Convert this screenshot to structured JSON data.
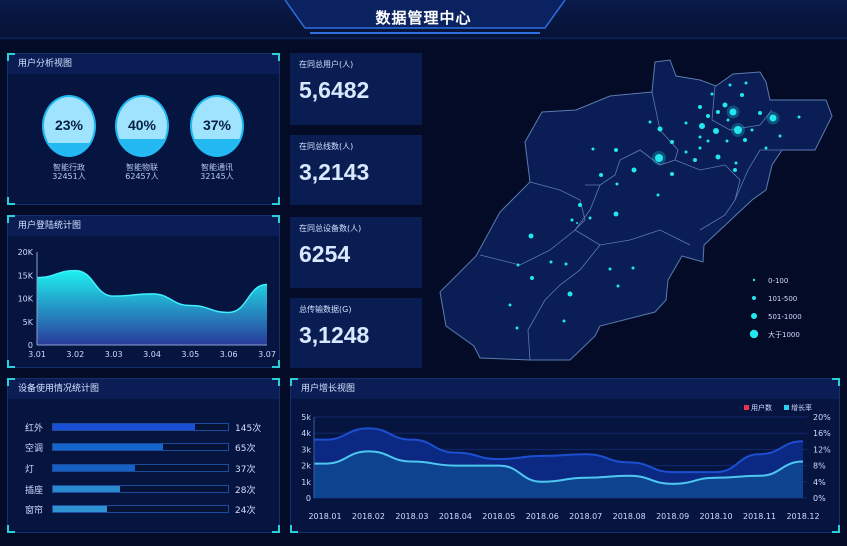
{
  "header": {
    "title": "数据管理中心"
  },
  "user_analysis": {
    "title": "用户分析视图",
    "items": [
      {
        "percent": "23%",
        "fill": 0.23,
        "name": "智能行政",
        "count": "32451人"
      },
      {
        "percent": "40%",
        "fill": 0.4,
        "name": "智能物联",
        "count": "62457人"
      },
      {
        "percent": "37%",
        "fill": 0.37,
        "name": "智能通讯",
        "count": "32145人"
      }
    ]
  },
  "stats": [
    {
      "label": "在同总用户(人)",
      "value": "5,6482"
    },
    {
      "label": "在同总线数(人)",
      "value": "3,2143"
    },
    {
      "label": "在同总设备数(人)",
      "value": "6254"
    },
    {
      "label": "总传输数据(G)",
      "value": "3,1248"
    }
  ],
  "map": {
    "legend": [
      {
        "label": "0-100"
      },
      {
        "label": "101-500"
      },
      {
        "label": "501-1000"
      },
      {
        "label": "大于1000"
      }
    ],
    "color": "#22e6f0"
  },
  "chart_data": [
    {
      "title": "用户登陆统计图",
      "type": "area",
      "categories": [
        "3.01",
        "3.02",
        "3.03",
        "3.04",
        "3.05",
        "3.06",
        "3.07"
      ],
      "values": [
        14500,
        16000,
        10500,
        11000,
        8500,
        7000,
        13000
      ],
      "ylim": [
        0,
        20000
      ],
      "yticks": [
        "0",
        "5K",
        "10K",
        "15K",
        "20K"
      ]
    },
    {
      "title": "设备使用情况统计图",
      "type": "bar",
      "orientation": "horizontal",
      "categories": [
        "红外",
        "空调",
        "灯",
        "插座",
        "窗帘"
      ],
      "values": [
        145,
        65,
        37,
        28,
        24
      ],
      "labels": [
        "145次",
        "65次",
        "37次",
        "28次",
        "24次"
      ],
      "fill_percent": [
        81,
        63,
        47,
        38,
        31
      ],
      "colors": [
        "#1a4fd8",
        "#1466cc",
        "#1560c4",
        "#2a8ad0",
        "#2f92d2"
      ]
    },
    {
      "title": "用户增长视图",
      "type": "area",
      "categories": [
        "2018.01",
        "2018.02",
        "2018.03",
        "2018.04",
        "2018.05",
        "2018.06",
        "2018.07",
        "2018.08",
        "2018.09",
        "2018.10",
        "2018.11",
        "2018.12"
      ],
      "series": [
        {
          "name": "用户数",
          "axis": "left",
          "values": [
            3600,
            4300,
            3600,
            2800,
            2400,
            2600,
            2700,
            2200,
            1600,
            1600,
            2700,
            3500
          ],
          "legend_color": "#e8334a",
          "line_color": "#1c4fd0"
        },
        {
          "name": "增长率",
          "axis": "right",
          "values": [
            8.5,
            11.5,
            9,
            8,
            8,
            4,
            5,
            5.5,
            3.5,
            5,
            5.5,
            9
          ],
          "legend_color": "#2ad0f0",
          "line_color": "#4ec8f0"
        }
      ],
      "ylim_left": [
        0,
        5000
      ],
      "yticks_left": [
        "0",
        "1k",
        "2k",
        "3k",
        "4k",
        "5k"
      ],
      "ylim_right": [
        0,
        20
      ],
      "yticks_right": [
        "0%",
        "4%",
        "8%",
        "12%",
        "16%",
        "20%"
      ],
      "legend_position": "top-right",
      "grid": true
    }
  ]
}
